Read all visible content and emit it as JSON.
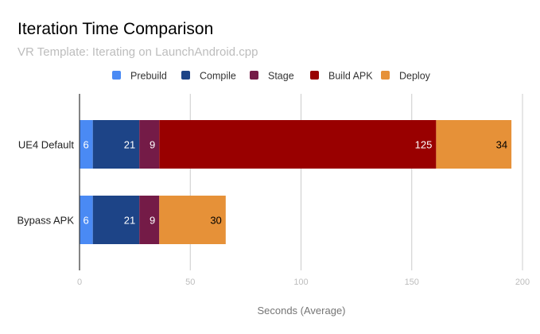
{
  "chart_data": {
    "type": "bar",
    "orientation": "horizontal",
    "stacked": true,
    "title": "Iteration Time Comparison",
    "subtitle": "VR Template: Iterating on LaunchAndroid.cpp",
    "xlabel": "Seconds (Average)",
    "ylabel": "",
    "xlim": [
      0,
      200
    ],
    "xticks": [
      0,
      50,
      100,
      150,
      200
    ],
    "grid": true,
    "legend_position": "top",
    "categories": [
      "UE4 Default",
      "Bypass APK"
    ],
    "series": [
      {
        "name": "Prebuild",
        "color": "#4a8af4",
        "label_color": "#ffffff",
        "values": [
          6,
          6
        ]
      },
      {
        "name": "Compile",
        "color": "#1d4487",
        "label_color": "#ffffff",
        "values": [
          21,
          21
        ]
      },
      {
        "name": "Stage",
        "color": "#741b47",
        "label_color": "#ffffff",
        "values": [
          9,
          9
        ]
      },
      {
        "name": "Build APK",
        "color": "#990000",
        "label_color": "#ffffff",
        "values": [
          125,
          0
        ]
      },
      {
        "name": "Deploy",
        "color": "#e69138",
        "label_color": "#000000",
        "values": [
          34,
          30
        ]
      }
    ]
  }
}
